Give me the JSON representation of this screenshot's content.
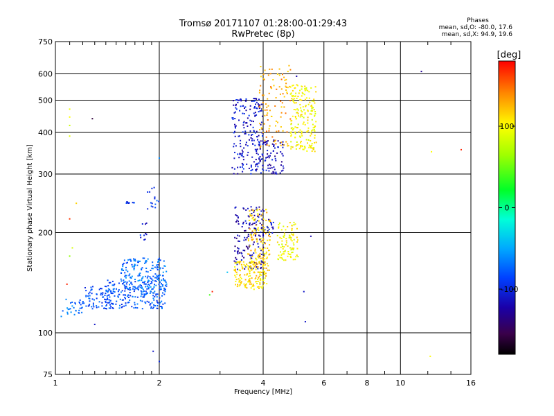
{
  "title_line1": "Tromsø 20171107 01:28:00-01:29:43",
  "title_line2": "RwPretec (8p)",
  "stats": {
    "heading": "Phases",
    "line1": "mean, sd,O: -80.0, 17.6",
    "line2": "mean, sd,X:  94.9, 19.6"
  },
  "colorbar": {
    "unit_label": "[deg]",
    "range": [
      -180,
      180
    ],
    "ticks": [
      {
        "value": 100,
        "label": "100"
      },
      {
        "value": 0,
        "label": "0"
      },
      {
        "value": -100,
        "label": "-100"
      }
    ]
  },
  "chart_data": {
    "type": "scatter",
    "xlabel": "Frequency [MHz]",
    "ylabel": "Stationary phase Virtual Height [km]",
    "xscale": "log",
    "yscale": "log",
    "xlim": [
      1,
      16
    ],
    "ylim": [
      75,
      750
    ],
    "grid": true,
    "xticks": [
      {
        "value": 1,
        "label": "1"
      },
      {
        "value": 2,
        "label": "2"
      },
      {
        "value": 4,
        "label": "4"
      },
      {
        "value": 6,
        "label": "6"
      },
      {
        "value": 8,
        "label": "8"
      },
      {
        "value": 10,
        "label": "10"
      },
      {
        "value": 16,
        "label": "16"
      }
    ],
    "yticks": [
      {
        "value": 75,
        "label": "75"
      },
      {
        "value": 100,
        "label": "100"
      },
      {
        "value": 200,
        "label": "200"
      },
      {
        "value": 300,
        "label": "300"
      },
      {
        "value": 400,
        "label": "400"
      },
      {
        "value": 500,
        "label": "500"
      },
      {
        "value": 600,
        "label": "600"
      },
      {
        "value": 750,
        "label": "750"
      }
    ],
    "clusters": [
      {
        "x": [
          1.05,
          1.2
        ],
        "y": [
          112,
          128
        ],
        "phase": -70,
        "n": 30
      },
      {
        "x": [
          1.2,
          1.45
        ],
        "y": [
          118,
          138
        ],
        "phase": -85,
        "n": 70
      },
      {
        "x": [
          1.4,
          2.1
        ],
        "y": [
          118,
          145
        ],
        "phase": -80,
        "n": 230
      },
      {
        "x": [
          1.55,
          2.1
        ],
        "y": [
          135,
          168
        ],
        "phase": -70,
        "n": 160
      },
      {
        "x": [
          1.85,
          2.0
        ],
        "y": [
          235,
          275
        ],
        "phase": -90,
        "n": 15
      },
      {
        "x": [
          1.6,
          1.7
        ],
        "y": [
          245,
          248
        ],
        "phase": -95,
        "n": 12
      },
      {
        "x": [
          1.75,
          1.85
        ],
        "y": [
          190,
          215
        ],
        "phase": -100,
        "n": 10
      },
      {
        "x": [
          3.3,
          4.05
        ],
        "y": [
          155,
          240
        ],
        "phase": -120,
        "n": 160
      },
      {
        "x": [
          3.25,
          4.0
        ],
        "y": [
          300,
          510
        ],
        "phase": -110,
        "n": 190
      },
      {
        "x": [
          3.8,
          4.6
        ],
        "y": [
          300,
          380
        ],
        "phase": -115,
        "n": 90
      },
      {
        "x": [
          3.3,
          4.1
        ],
        "y": [
          135,
          165
        ],
        "phase": 110,
        "n": 140
      },
      {
        "x": [
          3.6,
          4.2
        ],
        "y": [
          150,
          235
        ],
        "phase": 115,
        "n": 150
      },
      {
        "x": [
          4.4,
          5.05
        ],
        "y": [
          165,
          215
        ],
        "phase": 100,
        "n": 90
      },
      {
        "x": [
          3.9,
          4.8
        ],
        "y": [
          360,
          640
        ],
        "phase": 130,
        "n": 110
      },
      {
        "x": [
          4.8,
          5.7
        ],
        "y": [
          350,
          560
        ],
        "phase": 100,
        "n": 200
      },
      {
        "x": [
          4.1,
          4.35
        ],
        "y": [
          195,
          220
        ],
        "phase": -110,
        "n": 15
      }
    ],
    "points": [
      {
        "x": 1.1,
        "y": 170,
        "phase": 60
      },
      {
        "x": 1.08,
        "y": 140,
        "phase": 170
      },
      {
        "x": 1.1,
        "y": 220,
        "phase": 165
      },
      {
        "x": 1.15,
        "y": 245,
        "phase": 115
      },
      {
        "x": 1.1,
        "y": 445,
        "phase": 100
      },
      {
        "x": 1.1,
        "y": 420,
        "phase": 80
      },
      {
        "x": 1.1,
        "y": 470,
        "phase": 95
      },
      {
        "x": 1.1,
        "y": 390,
        "phase": 90
      },
      {
        "x": 1.12,
        "y": 180,
        "phase": 85
      },
      {
        "x": 1.28,
        "y": 440,
        "phase": -160
      },
      {
        "x": 1.92,
        "y": 88,
        "phase": -110
      },
      {
        "x": 2.0,
        "y": 82,
        "phase": -100
      },
      {
        "x": 2.0,
        "y": 335,
        "phase": -60
      },
      {
        "x": 2.8,
        "y": 130,
        "phase": 40
      },
      {
        "x": 2.85,
        "y": 133,
        "phase": 170
      },
      {
        "x": 3.15,
        "y": 152,
        "phase": -40
      },
      {
        "x": 5.0,
        "y": 590,
        "phase": -120
      },
      {
        "x": 5.25,
        "y": 133,
        "phase": -110
      },
      {
        "x": 5.3,
        "y": 108,
        "phase": -110
      },
      {
        "x": 5.5,
        "y": 195,
        "phase": -120
      },
      {
        "x": 11.5,
        "y": 610,
        "phase": -130
      },
      {
        "x": 12.3,
        "y": 350,
        "phase": 100
      },
      {
        "x": 12.2,
        "y": 85,
        "phase": 100
      },
      {
        "x": 15.0,
        "y": 355,
        "phase": 170
      },
      {
        "x": 1.04,
        "y": 112,
        "phase": -60
      },
      {
        "x": 1.3,
        "y": 106,
        "phase": -110
      }
    ]
  }
}
